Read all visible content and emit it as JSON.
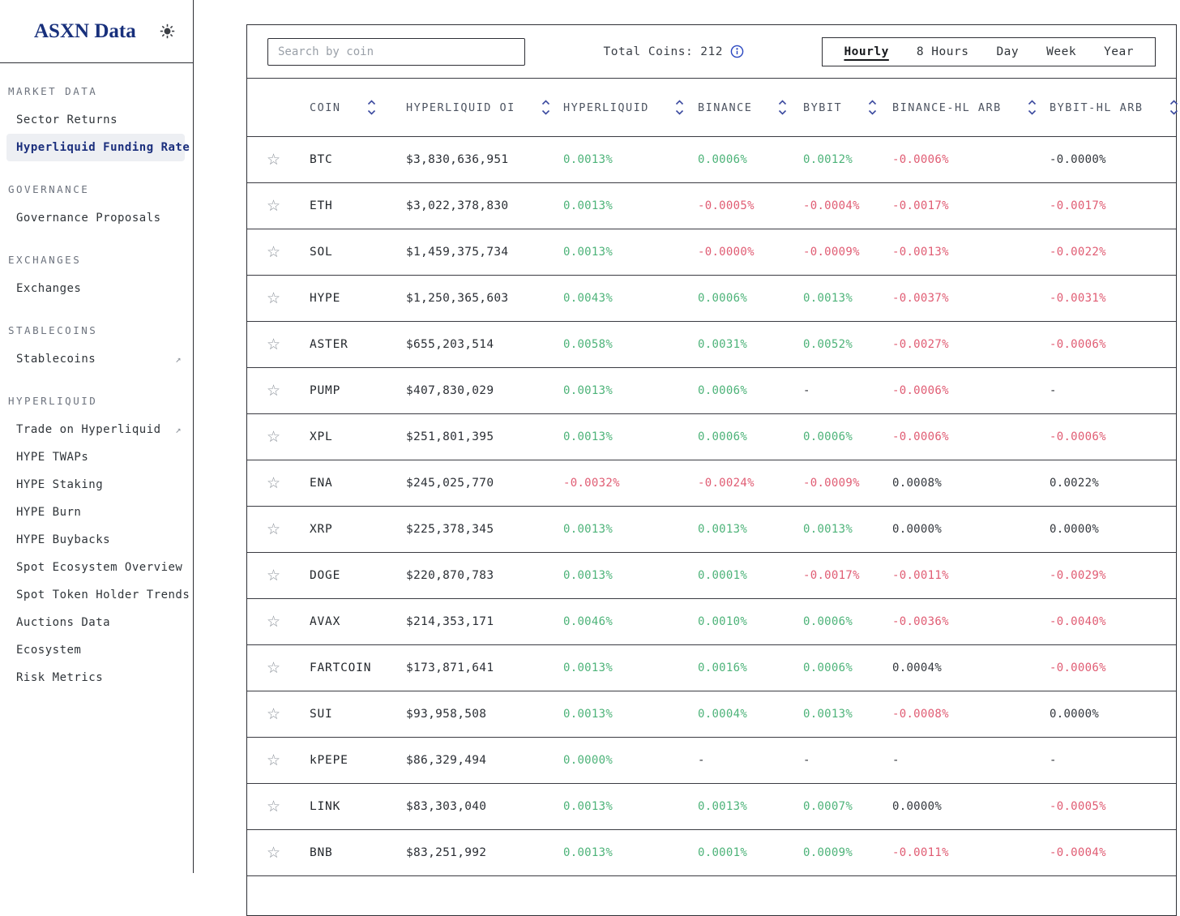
{
  "app": {
    "title": "ASXN Data"
  },
  "colors": {
    "positive_green": "#4db379",
    "negative_red": "#e05c73",
    "neutral_dark": "#33373d",
    "accent_navy": "#1b2f7d",
    "active_item_bg": "#edeff3"
  },
  "sidebar": {
    "sections": [
      {
        "title": "MARKET DATA",
        "items": [
          {
            "label": "Sector Returns"
          },
          {
            "label": "Hyperliquid Funding Rate",
            "active": true
          }
        ]
      },
      {
        "title": "GOVERNANCE",
        "items": [
          {
            "label": "Governance Proposals"
          }
        ]
      },
      {
        "title": "EXCHANGES",
        "items": [
          {
            "label": "Exchanges"
          }
        ]
      },
      {
        "title": "STABLECOINS",
        "items": [
          {
            "label": "Stablecoins",
            "external": true
          }
        ]
      },
      {
        "title": "HYPERLIQUID",
        "items": [
          {
            "label": "Trade on Hyperliquid",
            "external": true
          },
          {
            "label": "HYPE TWAPs"
          },
          {
            "label": "HYPE Staking"
          },
          {
            "label": "HYPE Burn"
          },
          {
            "label": "HYPE Buybacks"
          },
          {
            "label": "Spot Ecosystem Overview"
          },
          {
            "label": "Spot Token Holder Trends"
          },
          {
            "label": "Auctions Data"
          },
          {
            "label": "Ecosystem"
          },
          {
            "label": "Risk Metrics"
          }
        ]
      }
    ],
    "icons": {
      "theme_toggle": "sun-icon",
      "external_link": "↗"
    }
  },
  "controls": {
    "search_placeholder": "Search by coin",
    "total_coins_label": "Total Coins:",
    "total_coins_value": "212",
    "info_icon": "info-circle-icon",
    "periods": [
      {
        "label": "Hourly",
        "active": true
      },
      {
        "label": "8 Hours"
      },
      {
        "label": "Day"
      },
      {
        "label": "Week"
      },
      {
        "label": "Year"
      }
    ]
  },
  "table": {
    "columns": [
      "COIN",
      "HYPERLIQUID OI",
      "HYPERLIQUID",
      "BINANCE",
      "BYBIT",
      "BINANCE-HL ARB",
      "BYBIT-HL ARB"
    ],
    "sort_icon": "chevron-up-down-icon",
    "favorite_icon": "star-outline-icon",
    "rows": [
      {
        "coin": "BTC",
        "oi": "$3,830,636,951",
        "cells": [
          {
            "v": "0.0013%",
            "c": "g"
          },
          {
            "v": "0.0006%",
            "c": "g"
          },
          {
            "v": "0.0012%",
            "c": "g"
          },
          {
            "v": "-0.0006%",
            "c": "r"
          },
          {
            "v": "-0.0000%",
            "c": "n"
          }
        ]
      },
      {
        "coin": "ETH",
        "oi": "$3,022,378,830",
        "cells": [
          {
            "v": "0.0013%",
            "c": "g"
          },
          {
            "v": "-0.0005%",
            "c": "r"
          },
          {
            "v": "-0.0004%",
            "c": "r"
          },
          {
            "v": "-0.0017%",
            "c": "r"
          },
          {
            "v": "-0.0017%",
            "c": "r"
          }
        ]
      },
      {
        "coin": "SOL",
        "oi": "$1,459,375,734",
        "cells": [
          {
            "v": "0.0013%",
            "c": "g"
          },
          {
            "v": "-0.0000%",
            "c": "r"
          },
          {
            "v": "-0.0009%",
            "c": "r"
          },
          {
            "v": "-0.0013%",
            "c": "r"
          },
          {
            "v": "-0.0022%",
            "c": "r"
          }
        ]
      },
      {
        "coin": "HYPE",
        "oi": "$1,250,365,603",
        "cells": [
          {
            "v": "0.0043%",
            "c": "g"
          },
          {
            "v": "0.0006%",
            "c": "g"
          },
          {
            "v": "0.0013%",
            "c": "g"
          },
          {
            "v": "-0.0037%",
            "c": "r"
          },
          {
            "v": "-0.0031%",
            "c": "r"
          }
        ]
      },
      {
        "coin": "ASTER",
        "oi": "$655,203,514",
        "cells": [
          {
            "v": "0.0058%",
            "c": "g"
          },
          {
            "v": "0.0031%",
            "c": "g"
          },
          {
            "v": "0.0052%",
            "c": "g"
          },
          {
            "v": "-0.0027%",
            "c": "r"
          },
          {
            "v": "-0.0006%",
            "c": "r"
          }
        ]
      },
      {
        "coin": "PUMP",
        "oi": "$407,830,029",
        "cells": [
          {
            "v": "0.0013%",
            "c": "g"
          },
          {
            "v": "0.0006%",
            "c": "g"
          },
          {
            "v": "-",
            "c": "n"
          },
          {
            "v": "-0.0006%",
            "c": "r"
          },
          {
            "v": "-",
            "c": "n"
          }
        ]
      },
      {
        "coin": "XPL",
        "oi": "$251,801,395",
        "cells": [
          {
            "v": "0.0013%",
            "c": "g"
          },
          {
            "v": "0.0006%",
            "c": "g"
          },
          {
            "v": "0.0006%",
            "c": "g"
          },
          {
            "v": "-0.0006%",
            "c": "r"
          },
          {
            "v": "-0.0006%",
            "c": "r"
          }
        ]
      },
      {
        "coin": "ENA",
        "oi": "$245,025,770",
        "cells": [
          {
            "v": "-0.0032%",
            "c": "r"
          },
          {
            "v": "-0.0024%",
            "c": "r"
          },
          {
            "v": "-0.0009%",
            "c": "r"
          },
          {
            "v": "0.0008%",
            "c": "n"
          },
          {
            "v": "0.0022%",
            "c": "n"
          }
        ]
      },
      {
        "coin": "XRP",
        "oi": "$225,378,345",
        "cells": [
          {
            "v": "0.0013%",
            "c": "g"
          },
          {
            "v": "0.0013%",
            "c": "g"
          },
          {
            "v": "0.0013%",
            "c": "g"
          },
          {
            "v": "0.0000%",
            "c": "n"
          },
          {
            "v": "0.0000%",
            "c": "n"
          }
        ]
      },
      {
        "coin": "DOGE",
        "oi": "$220,870,783",
        "cells": [
          {
            "v": "0.0013%",
            "c": "g"
          },
          {
            "v": "0.0001%",
            "c": "g"
          },
          {
            "v": "-0.0017%",
            "c": "r"
          },
          {
            "v": "-0.0011%",
            "c": "r"
          },
          {
            "v": "-0.0029%",
            "c": "r"
          }
        ]
      },
      {
        "coin": "AVAX",
        "oi": "$214,353,171",
        "cells": [
          {
            "v": "0.0046%",
            "c": "g"
          },
          {
            "v": "0.0010%",
            "c": "g"
          },
          {
            "v": "0.0006%",
            "c": "g"
          },
          {
            "v": "-0.0036%",
            "c": "r"
          },
          {
            "v": "-0.0040%",
            "c": "r"
          }
        ]
      },
      {
        "coin": "FARTCOIN",
        "oi": "$173,871,641",
        "cells": [
          {
            "v": "0.0013%",
            "c": "g"
          },
          {
            "v": "0.0016%",
            "c": "g"
          },
          {
            "v": "0.0006%",
            "c": "g"
          },
          {
            "v": "0.0004%",
            "c": "n"
          },
          {
            "v": "-0.0006%",
            "c": "r"
          }
        ]
      },
      {
        "coin": "SUI",
        "oi": "$93,958,508",
        "cells": [
          {
            "v": "0.0013%",
            "c": "g"
          },
          {
            "v": "0.0004%",
            "c": "g"
          },
          {
            "v": "0.0013%",
            "c": "g"
          },
          {
            "v": "-0.0008%",
            "c": "r"
          },
          {
            "v": "0.0000%",
            "c": "n"
          }
        ]
      },
      {
        "coin": "kPEPE",
        "oi": "$86,329,494",
        "cells": [
          {
            "v": "0.0000%",
            "c": "g"
          },
          {
            "v": "-",
            "c": "n"
          },
          {
            "v": "-",
            "c": "n"
          },
          {
            "v": "-",
            "c": "n"
          },
          {
            "v": "-",
            "c": "n"
          }
        ]
      },
      {
        "coin": "LINK",
        "oi": "$83,303,040",
        "cells": [
          {
            "v": "0.0013%",
            "c": "g"
          },
          {
            "v": "0.0013%",
            "c": "g"
          },
          {
            "v": "0.0007%",
            "c": "g"
          },
          {
            "v": "0.0000%",
            "c": "n"
          },
          {
            "v": "-0.0005%",
            "c": "r"
          }
        ]
      },
      {
        "coin": "BNB",
        "oi": "$83,251,992",
        "cells": [
          {
            "v": "0.0013%",
            "c": "g"
          },
          {
            "v": "0.0001%",
            "c": "g"
          },
          {
            "v": "0.0009%",
            "c": "g"
          },
          {
            "v": "-0.0011%",
            "c": "r"
          },
          {
            "v": "-0.0004%",
            "c": "r"
          }
        ]
      }
    ]
  }
}
